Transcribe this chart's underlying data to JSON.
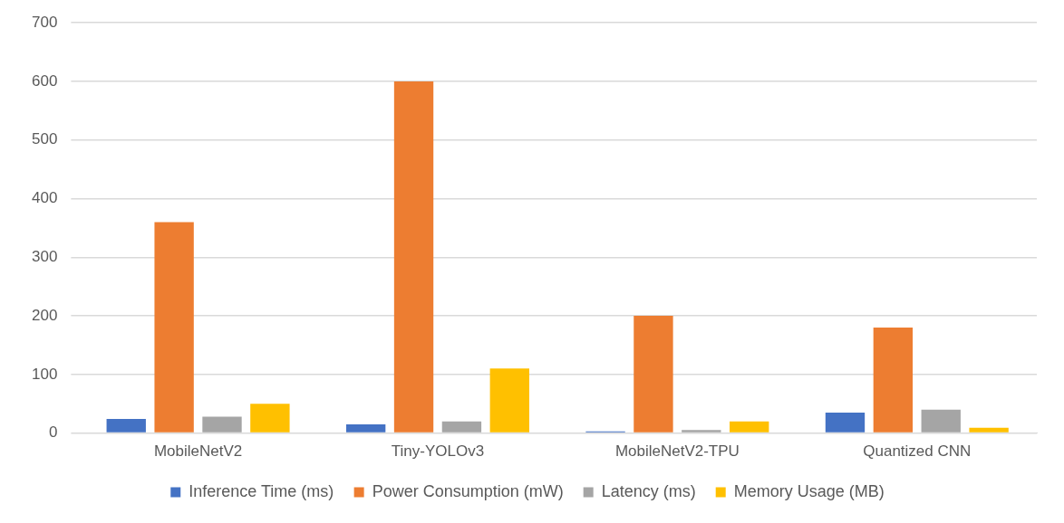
{
  "chart_data": {
    "type": "bar",
    "categories": [
      "MobileNetV2",
      "Tiny-YOLOv3",
      "MobileNetV2-TPU",
      "Quantized CNN"
    ],
    "series": [
      {
        "name": "Inference Time (ms)",
        "color": "#4472c4",
        "values": [
          24,
          15,
          3,
          35
        ]
      },
      {
        "name": "Power Consumption (mW)",
        "color": "#ed7d31",
        "values": [
          360,
          600,
          200,
          180
        ]
      },
      {
        "name": "Latency (ms)",
        "color": "#a5a5a5",
        "values": [
          28,
          20,
          5,
          40
        ]
      },
      {
        "name": "Memory Usage (MB)",
        "color": "#ffc000",
        "values": [
          50,
          110,
          20,
          9
        ]
      }
    ],
    "ylim": [
      0,
      700
    ],
    "yticks": [
      0,
      100,
      200,
      300,
      400,
      500,
      600,
      700
    ],
    "grid": "y",
    "legend": "bottom"
  }
}
